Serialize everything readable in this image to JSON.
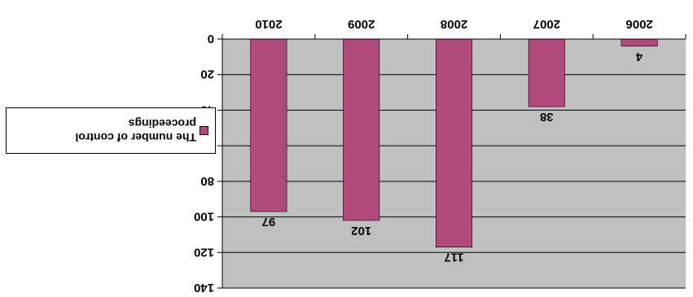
{
  "chart_data": {
    "type": "bar",
    "categories": [
      "2006",
      "2007",
      "2008",
      "2009",
      "2010"
    ],
    "series": [
      {
        "name": "The number of control proceedings",
        "values": [
          4,
          38,
          117,
          102,
          97
        ]
      }
    ],
    "ylim": [
      0,
      140
    ],
    "yticks": [
      0,
      20,
      40,
      60,
      80,
      100,
      120,
      140
    ],
    "grid": true,
    "legend": "right",
    "orientation": "rotated-180",
    "colors": {
      "bar": "#b04a7a",
      "plot_bg": "#c0c0c0",
      "grid": "#000000"
    }
  }
}
